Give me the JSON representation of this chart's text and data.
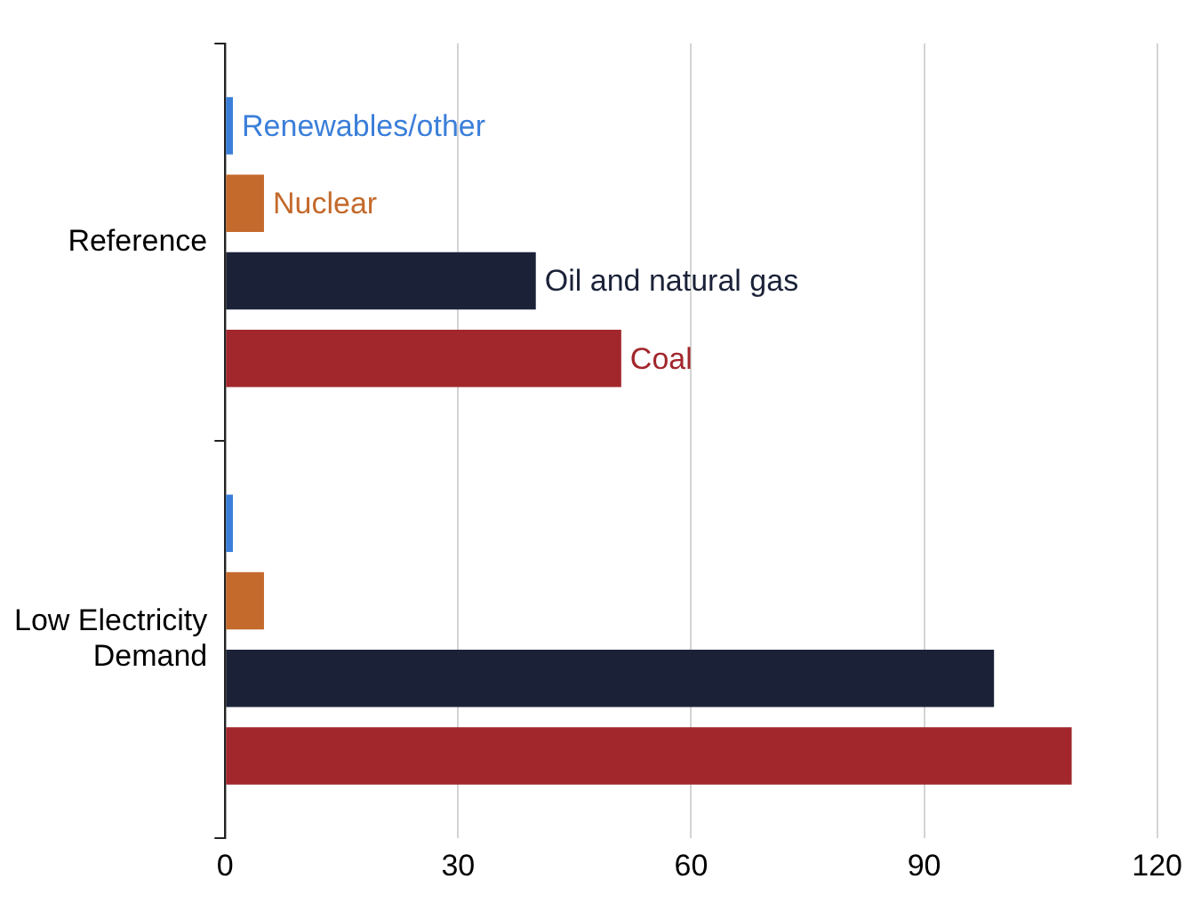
{
  "chart_data": {
    "type": "bar",
    "orientation": "horizontal",
    "categories": [
      "Reference",
      "Low Electricity Demand"
    ],
    "series": [
      {
        "name": "Renewables/other",
        "color": "#3b7fd9",
        "values": [
          1,
          1
        ]
      },
      {
        "name": "Nuclear",
        "color": "#c46a2c",
        "values": [
          5,
          5
        ]
      },
      {
        "name": "Oil and natural gas",
        "color": "#1b2238",
        "values": [
          40,
          99
        ]
      },
      {
        "name": "Coal",
        "color": "#a1272c",
        "values": [
          51,
          109
        ]
      }
    ],
    "xlim": [
      0,
      120
    ],
    "xticks": [
      0,
      30,
      60,
      90,
      120
    ],
    "grid": "x",
    "legend": false
  }
}
